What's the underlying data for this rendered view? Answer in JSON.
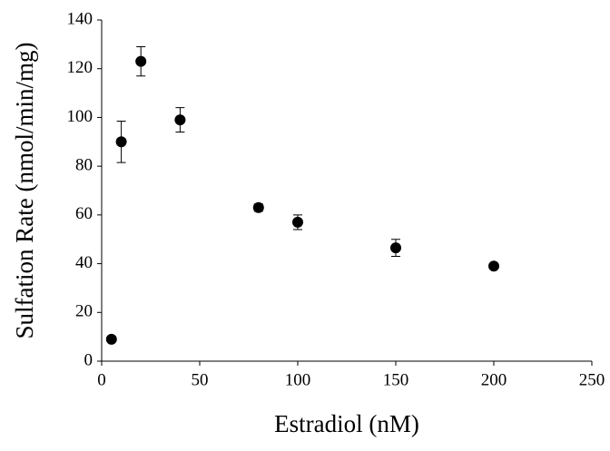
{
  "chart_data": {
    "type": "scatter",
    "x_label": "Estradiol (nM)",
    "y_label": "Sulfation Rate (nmol/min/mg)",
    "x": [
      5,
      10,
      20,
      40,
      80,
      100,
      150,
      200
    ],
    "values": [
      9,
      90,
      123,
      99,
      63,
      57,
      46.5,
      39
    ],
    "errors": [
      0.5,
      8.5,
      6,
      5,
      1.5,
      3,
      3.5,
      1
    ],
    "color": "#000000",
    "xlim": [
      0,
      250
    ],
    "xticks": [
      0,
      50,
      100,
      150,
      200,
      250
    ],
    "ylim": [
      0,
      140
    ],
    "yticks": [
      0,
      20,
      40,
      60,
      80,
      100,
      120,
      140
    ],
    "grid": false
  }
}
